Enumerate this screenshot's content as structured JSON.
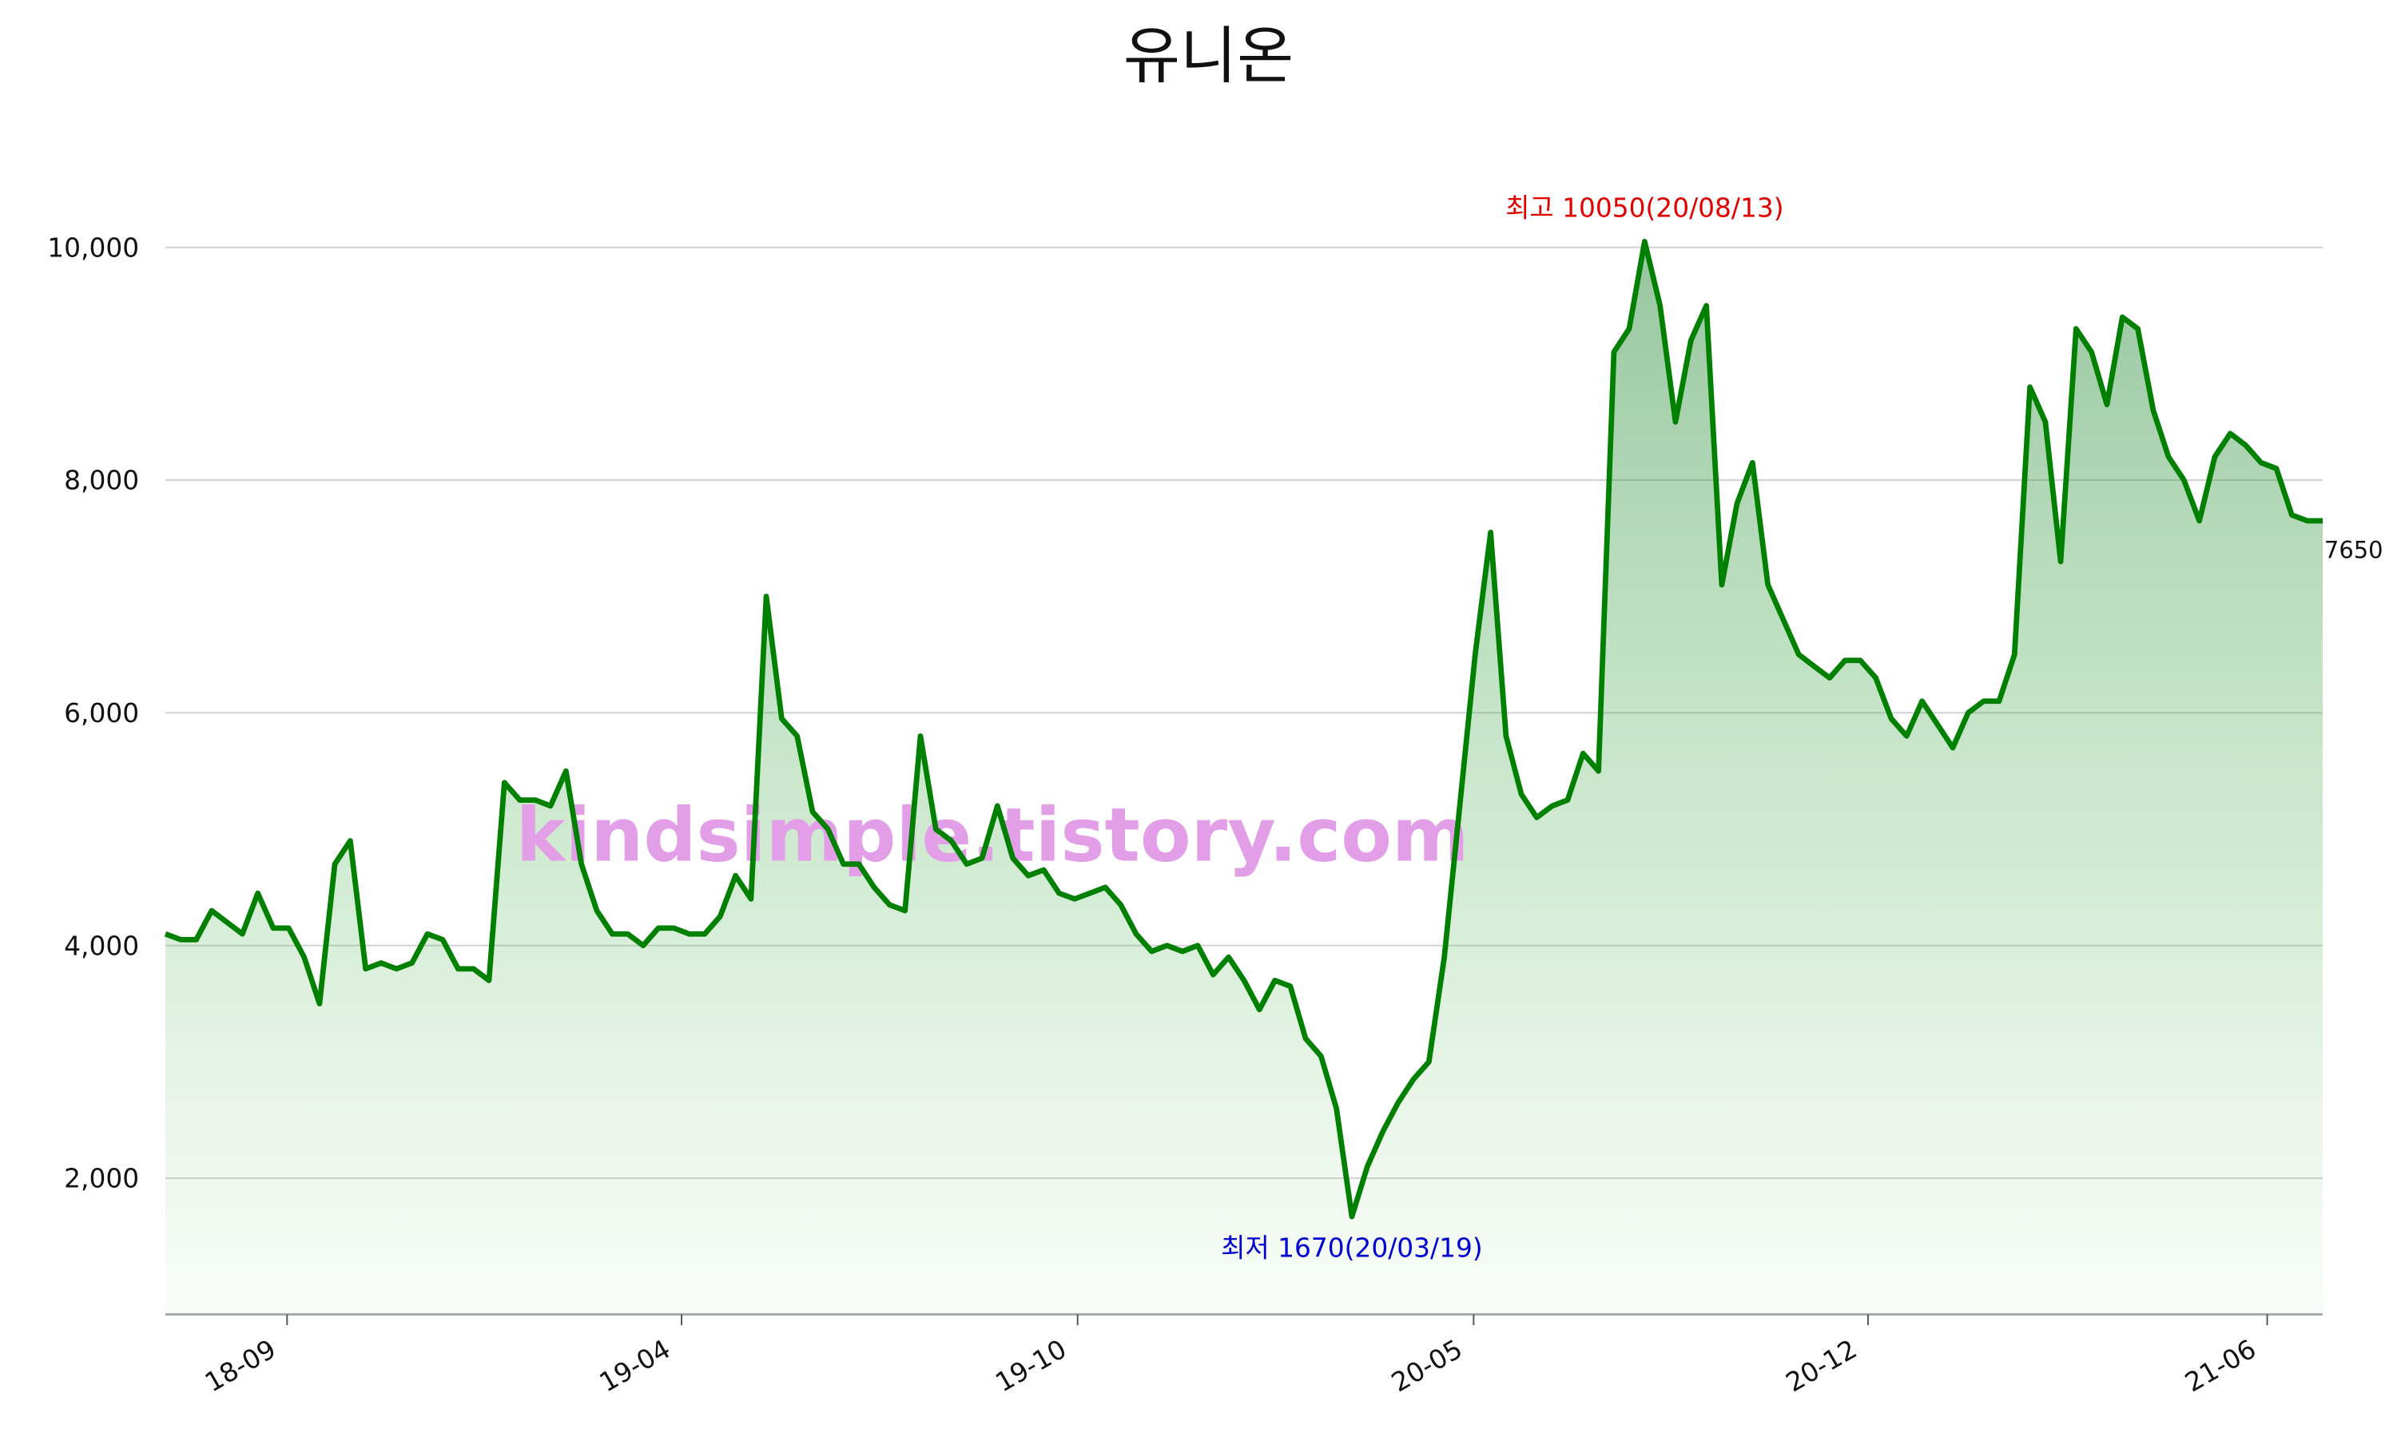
{
  "chart_data": {
    "type": "line",
    "title": "유니온",
    "watermark": "kindsimple.tistory.com",
    "color": "#008000",
    "values": [
      4100,
      4050,
      4050,
      4300,
      4200,
      4100,
      4450,
      4150,
      4150,
      3900,
      3500,
      4700,
      4900,
      3800,
      3850,
      3800,
      3850,
      4100,
      4050,
      3800,
      3800,
      3700,
      5400,
      5250,
      5250,
      5200,
      5500,
      4700,
      4300,
      4100,
      4100,
      4000,
      4150,
      4150,
      4100,
      4100,
      4250,
      4600,
      4400,
      7000,
      5950,
      5800,
      5150,
      5000,
      4700,
      4700,
      4500,
      4350,
      4300,
      5800,
      5000,
      4900,
      4700,
      4750,
      5200,
      4750,
      4600,
      4650,
      4450,
      4400,
      4450,
      4500,
      4350,
      4100,
      3950,
      4000,
      3950,
      4000,
      3750,
      3900,
      3700,
      3450,
      3700,
      3650,
      3200,
      3050,
      2600,
      1670,
      2100,
      2400,
      2650,
      2850,
      3000,
      3900,
      5200,
      6500,
      7550,
      5800,
      5300,
      5100,
      5200,
      5250,
      5650,
      5500,
      9100,
      9300,
      10050,
      9500,
      8500,
      9200,
      9500,
      7100,
      7800,
      8150,
      7100,
      6800,
      6500,
      6400,
      6300,
      6450,
      6450,
      6300,
      5950,
      5800,
      6100,
      5900,
      5700,
      6000,
      6100,
      6100,
      6500,
      8800,
      8500,
      7300,
      9300,
      9100,
      8650,
      9400,
      9300,
      8600,
      8200,
      8000,
      7650,
      8200,
      8400,
      8300,
      8150,
      8100,
      7700,
      7650,
      7650
    ],
    "xlim": [
      0,
      140
    ],
    "xticks": [
      {
        "value": 7.9,
        "label": "18-09"
      },
      {
        "value": 33.5,
        "label": "19-04"
      },
      {
        "value": 59.2,
        "label": "19-10"
      },
      {
        "value": 84.9,
        "label": "20-05"
      },
      {
        "value": 110.5,
        "label": "20-12"
      },
      {
        "value": 136.4,
        "label": "21-06"
      }
    ],
    "ylim": [
      830,
      10800
    ],
    "yticks": [
      {
        "value": 2000,
        "label": "2,000"
      },
      {
        "value": 4000,
        "label": "4,000"
      },
      {
        "value": 6000,
        "label": "6,000"
      },
      {
        "value": 8000,
        "label": "8,000"
      },
      {
        "value": 10000,
        "label": "10,000"
      }
    ],
    "grid": true,
    "annotations": [
      {
        "text": "최고 10050(20/08/13)",
        "color": "#e00000",
        "at": "max"
      },
      {
        "text": "최저 1670(20/03/19)",
        "color": "#0000d0",
        "at": "min"
      }
    ]
  }
}
